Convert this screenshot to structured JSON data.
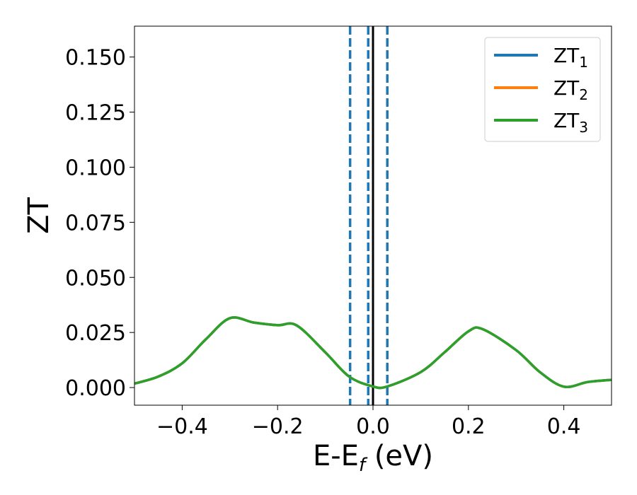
{
  "chart_data": {
    "type": "line",
    "xlabel": "E-E",
    "xlabel_sub": "f",
    "xlabel_unit": " (eV)",
    "ylabel": "ZT",
    "xlim": [
      -0.5,
      0.5
    ],
    "ylim": [
      -0.008,
      0.164
    ],
    "x_ticks": [
      -0.4,
      -0.2,
      0.0,
      0.2,
      0.4
    ],
    "x_tick_labels": [
      "−0.4",
      "−0.2",
      "0.0",
      "0.2",
      "0.4"
    ],
    "y_ticks": [
      0.0,
      0.025,
      0.05,
      0.075,
      0.1,
      0.125,
      0.15
    ],
    "y_tick_labels": [
      "0.000",
      "0.025",
      "0.050",
      "0.075",
      "0.100",
      "0.125",
      "0.150"
    ],
    "grid": false,
    "legend_position": "top-right",
    "vlines": [
      {
        "x": -0.048,
        "style": "dashed",
        "color": "#1f77b4"
      },
      {
        "x": -0.01,
        "style": "dashed",
        "color": "#1f77b4"
      },
      {
        "x": 0.0,
        "style": "solid",
        "color": "#000000"
      },
      {
        "x": 0.03,
        "style": "dashed",
        "color": "#1f77b4"
      }
    ],
    "series": [
      {
        "name": "ZT",
        "name_sub": "1",
        "color": "#1f77b4",
        "x": [
          -0.5,
          -0.45,
          -0.4,
          -0.35,
          -0.3,
          -0.25,
          -0.2,
          -0.16,
          -0.1,
          -0.05,
          0.0,
          0.03,
          0.1,
          0.15,
          0.2,
          0.23,
          0.3,
          0.35,
          0.4,
          0.45,
          0.5
        ],
        "y": [
          0.0018,
          0.005,
          0.011,
          0.022,
          0.0315,
          0.0295,
          0.0283,
          0.0282,
          0.016,
          0.005,
          0.0005,
          0.0005,
          0.007,
          0.016,
          0.0255,
          0.0265,
          0.017,
          0.007,
          0.0004,
          0.0025,
          0.0035
        ]
      },
      {
        "name": "ZT",
        "name_sub": "2",
        "color": "#ff7f0e",
        "x": [
          -0.5,
          -0.45,
          -0.4,
          -0.35,
          -0.3,
          -0.25,
          -0.2,
          -0.16,
          -0.1,
          -0.05,
          0.0,
          0.03,
          0.1,
          0.15,
          0.2,
          0.23,
          0.3,
          0.35,
          0.4,
          0.45,
          0.5
        ],
        "y": [
          0.0018,
          0.005,
          0.011,
          0.022,
          0.0315,
          0.0295,
          0.0283,
          0.0282,
          0.016,
          0.005,
          0.0005,
          0.0005,
          0.007,
          0.016,
          0.0255,
          0.0265,
          0.017,
          0.007,
          0.0004,
          0.0025,
          0.0035
        ]
      },
      {
        "name": "ZT",
        "name_sub": "3",
        "color": "#2ca02c",
        "x": [
          -0.5,
          -0.45,
          -0.4,
          -0.35,
          -0.3,
          -0.25,
          -0.2,
          -0.16,
          -0.1,
          -0.05,
          0.0,
          0.03,
          0.1,
          0.15,
          0.2,
          0.23,
          0.3,
          0.35,
          0.4,
          0.45,
          0.5
        ],
        "y": [
          0.0018,
          0.005,
          0.011,
          0.022,
          0.0315,
          0.0295,
          0.0283,
          0.0282,
          0.016,
          0.005,
          0.0005,
          0.0005,
          0.007,
          0.016,
          0.0255,
          0.0265,
          0.017,
          0.007,
          0.0004,
          0.0025,
          0.0035
        ]
      }
    ]
  }
}
